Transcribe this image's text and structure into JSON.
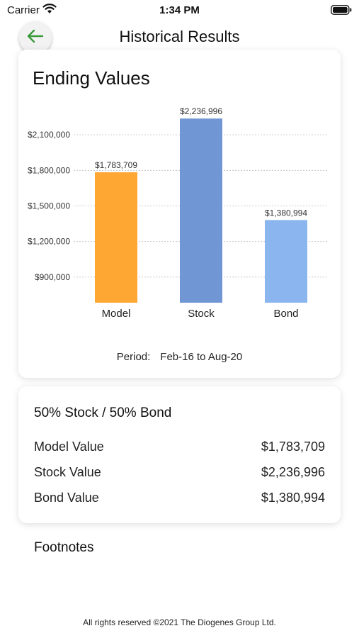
{
  "status_bar": {
    "carrier": "Carrier",
    "time": "1:34 PM"
  },
  "nav": {
    "title": "Historical Results",
    "back_icon": "arrow-left-icon",
    "accent_color": "#3a9a3a"
  },
  "chart_card": {
    "title": "Ending Values",
    "period_label": "Period:",
    "period_value": "Feb-16 to Aug-20"
  },
  "chart_data": {
    "type": "bar",
    "title": "Ending Values",
    "categories": [
      "Model",
      "Stock",
      "Bond"
    ],
    "values": [
      1783709,
      2236996,
      1380994
    ],
    "value_labels": [
      "$1,783,709",
      "$2,236,996",
      "$1,380,994"
    ],
    "colors": [
      "#ffa733",
      "#7097d4",
      "#8bb5ef"
    ],
    "yticks": [
      900000,
      1200000,
      1500000,
      1800000,
      2100000
    ],
    "ytick_labels": [
      "$900,000",
      "$1,200,000",
      "$1,500,000",
      "$1,800,000",
      "$2,100,000"
    ],
    "ylim": [
      684000,
      2340000
    ],
    "grid": true
  },
  "summary": {
    "title": "50% Stock / 50% Bond",
    "rows": [
      {
        "label": "Model Value",
        "value": "$1,783,709"
      },
      {
        "label": "Stock Value",
        "value": "$2,236,996"
      },
      {
        "label": "Bond Value",
        "value": "$1,380,994"
      }
    ]
  },
  "footnotes": {
    "title": "Footnotes"
  },
  "footer": {
    "copyright": "All rights reserved ©2021 The Diogenes Group Ltd."
  }
}
